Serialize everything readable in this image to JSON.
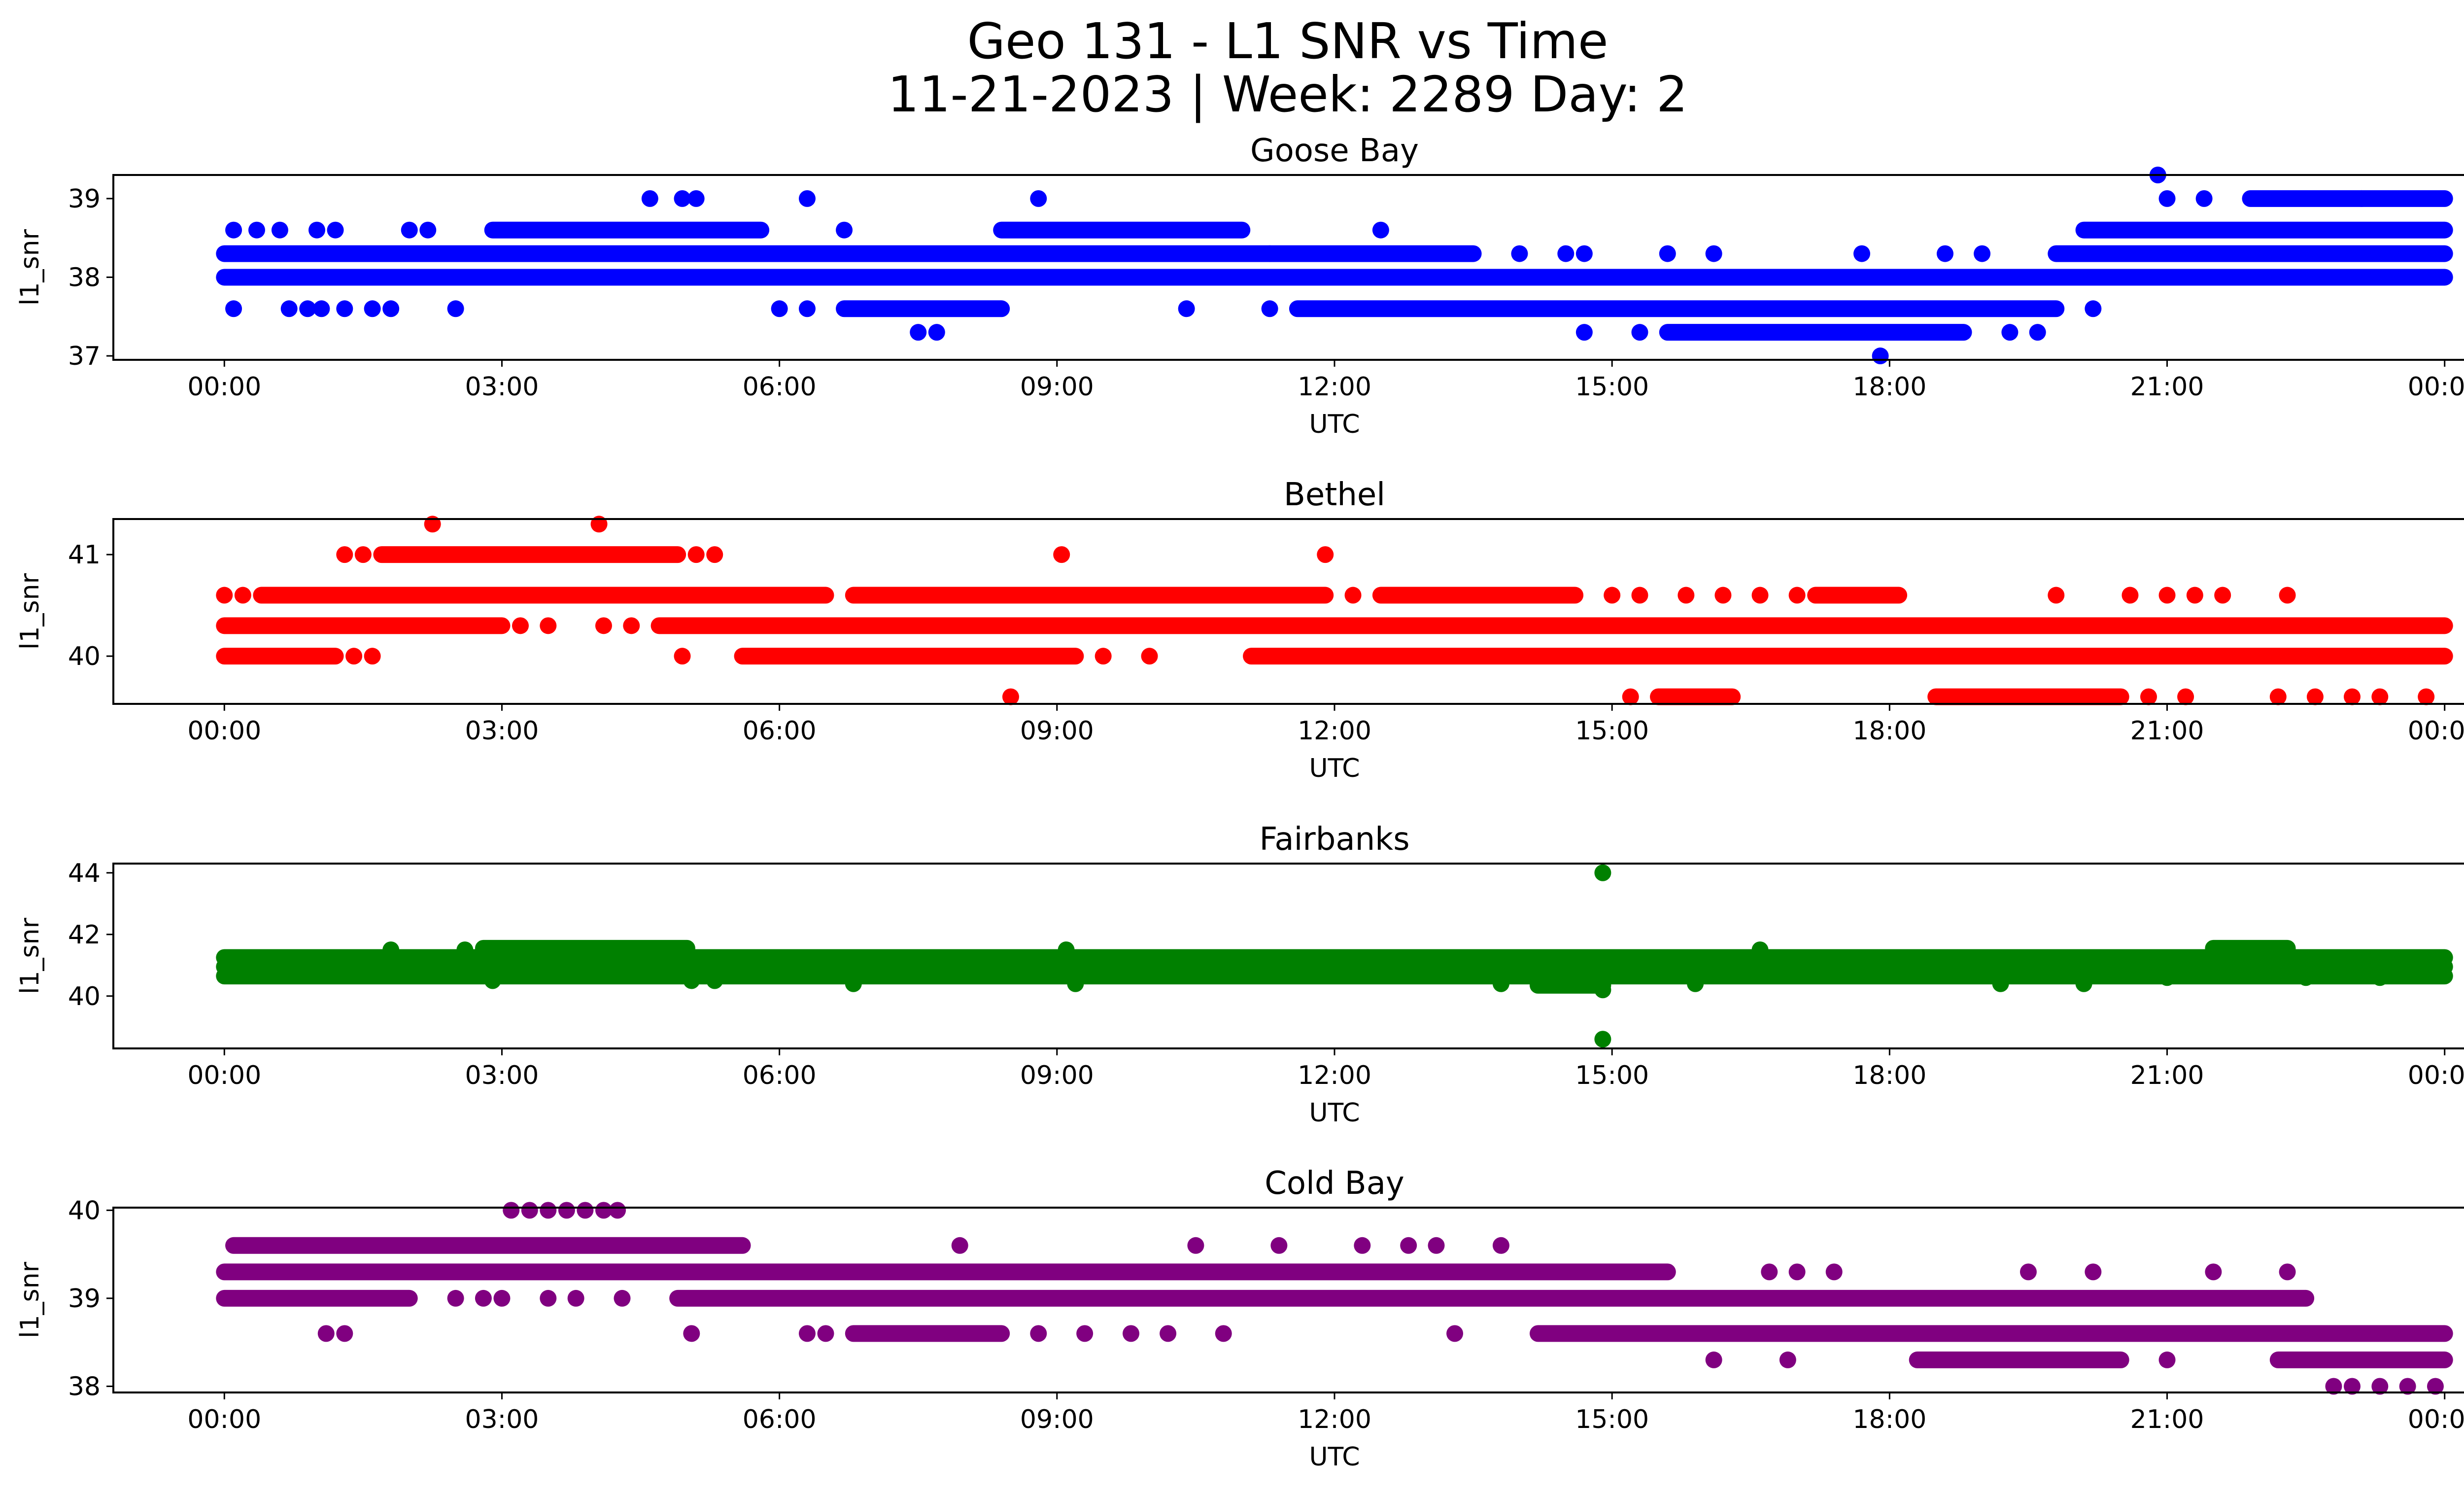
{
  "figure": {
    "title_line1": "Geo 131 - L1 SNR vs Time",
    "title_line2": "11-21-2023 | Week: 2289 Day: 2"
  },
  "chart_data": [
    {
      "type": "scatter",
      "title": "Goose Bay",
      "xlabel": "UTC",
      "ylabel": "l1_snr",
      "color": "#0000ff",
      "x_ticks": [
        "00:00",
        "03:00",
        "06:00",
        "09:00",
        "12:00",
        "15:00",
        "18:00",
        "21:00",
        "00:00"
      ],
      "x_range_hours": [
        -1.2,
        25.2
      ],
      "y_ticks": [
        37,
        38,
        39
      ],
      "ylim": [
        36.95,
        39.3
      ],
      "grid": false,
      "bands": [
        {
          "y": 38.3,
          "segments": [
            [
              0,
              11.3
            ],
            [
              11.3,
              13.5
            ],
            [
              19.8,
              24
            ]
          ]
        },
        {
          "y": 38.0,
          "segments": [
            [
              0,
              24
            ]
          ]
        },
        {
          "y": 38.6,
          "segments": [
            [
              2.9,
              5.8
            ],
            [
              8.4,
              11.0
            ],
            [
              20.1,
              24
            ]
          ]
        },
        {
          "y": 37.6,
          "segments": [
            [
              6.7,
              8.4
            ],
            [
              11.6,
              19.8
            ]
          ]
        },
        {
          "y": 37.3,
          "segments": [
            [
              15.6,
              18.8
            ]
          ]
        },
        {
          "y": 39.0,
          "segments": [
            [
              21.9,
              24
            ]
          ]
        }
      ],
      "points": [
        {
          "x": 0.1,
          "y": 38.6
        },
        {
          "x": 0.35,
          "y": 38.6
        },
        {
          "x": 0.6,
          "y": 38.6
        },
        {
          "x": 1.0,
          "y": 38.6
        },
        {
          "x": 1.2,
          "y": 38.6
        },
        {
          "x": 2.0,
          "y": 38.6
        },
        {
          "x": 2.2,
          "y": 38.6
        },
        {
          "x": 0.1,
          "y": 37.6
        },
        {
          "x": 0.7,
          "y": 37.6
        },
        {
          "x": 0.9,
          "y": 37.6
        },
        {
          "x": 1.05,
          "y": 37.6
        },
        {
          "x": 1.3,
          "y": 37.6
        },
        {
          "x": 1.6,
          "y": 37.6
        },
        {
          "x": 1.8,
          "y": 37.6
        },
        {
          "x": 2.5,
          "y": 37.6
        },
        {
          "x": 4.6,
          "y": 39.0
        },
        {
          "x": 4.95,
          "y": 39.0
        },
        {
          "x": 5.1,
          "y": 39.0
        },
        {
          "x": 6.3,
          "y": 39.0
        },
        {
          "x": 8.8,
          "y": 39.0
        },
        {
          "x": 6.0,
          "y": 37.6
        },
        {
          "x": 6.3,
          "y": 37.6
        },
        {
          "x": 7.5,
          "y": 37.3
        },
        {
          "x": 7.7,
          "y": 37.3
        },
        {
          "x": 6.7,
          "y": 38.6
        },
        {
          "x": 10.4,
          "y": 37.6
        },
        {
          "x": 11.3,
          "y": 37.6
        },
        {
          "x": 12.5,
          "y": 38.6
        },
        {
          "x": 14.0,
          "y": 38.3
        },
        {
          "x": 14.5,
          "y": 38.3
        },
        {
          "x": 14.7,
          "y": 38.3
        },
        {
          "x": 15.6,
          "y": 38.3
        },
        {
          "x": 16.1,
          "y": 38.3
        },
        {
          "x": 17.7,
          "y": 38.3
        },
        {
          "x": 18.6,
          "y": 38.3
        },
        {
          "x": 19.0,
          "y": 38.3
        },
        {
          "x": 14.7,
          "y": 37.3
        },
        {
          "x": 15.3,
          "y": 37.3
        },
        {
          "x": 19.3,
          "y": 37.3
        },
        {
          "x": 19.6,
          "y": 37.3
        },
        {
          "x": 17.9,
          "y": 37.0
        },
        {
          "x": 20.2,
          "y": 37.6
        },
        {
          "x": 21.0,
          "y": 39.0
        },
        {
          "x": 21.4,
          "y": 39.0
        },
        {
          "x": 20.9,
          "y": 39.3
        },
        {
          "x": 21.6,
          "y": 38.0
        },
        {
          "x": 23.1,
          "y": 39.0
        }
      ]
    },
    {
      "type": "scatter",
      "title": "Bethel",
      "xlabel": "UTC",
      "ylabel": "l1_snr",
      "color": "#ff0000",
      "x_ticks": [
        "00:00",
        "03:00",
        "06:00",
        "09:00",
        "12:00",
        "15:00",
        "18:00",
        "21:00",
        "00:00"
      ],
      "x_range_hours": [
        -1.2,
        25.2
      ],
      "y_ticks": [
        40,
        41
      ],
      "ylim": [
        39.53,
        41.35
      ],
      "grid": false,
      "bands": [
        {
          "y": 40.3,
          "segments": [
            [
              0,
              3.0
            ],
            [
              4.7,
              24
            ]
          ]
        },
        {
          "y": 40.6,
          "segments": [
            [
              0.4,
              6.5
            ],
            [
              6.8,
              11.9
            ],
            [
              12.5,
              14.6
            ],
            [
              17.2,
              18.1
            ]
          ]
        },
        {
          "y": 40.0,
          "segments": [
            [
              0,
              1.2
            ],
            [
              5.6,
              9.2
            ],
            [
              11.1,
              24
            ]
          ]
        },
        {
          "y": 41.0,
          "segments": [
            [
              1.7,
              4.9
            ]
          ]
        },
        {
          "y": 39.6,
          "segments": [
            [
              15.5,
              16.3
            ],
            [
              18.5,
              20.5
            ]
          ]
        }
      ],
      "points": [
        {
          "x": 0.0,
          "y": 40.6
        },
        {
          "x": 0.2,
          "y": 40.6
        },
        {
          "x": 1.3,
          "y": 41.0
        },
        {
          "x": 1.5,
          "y": 41.0
        },
        {
          "x": 2.25,
          "y": 41.3
        },
        {
          "x": 4.05,
          "y": 41.3
        },
        {
          "x": 5.1,
          "y": 41.0
        },
        {
          "x": 5.3,
          "y": 41.0
        },
        {
          "x": 1.4,
          "y": 40.0
        },
        {
          "x": 1.6,
          "y": 40.0
        },
        {
          "x": 3.2,
          "y": 40.3
        },
        {
          "x": 3.5,
          "y": 40.3
        },
        {
          "x": 4.1,
          "y": 40.3
        },
        {
          "x": 4.4,
          "y": 40.3
        },
        {
          "x": 4.95,
          "y": 40.0
        },
        {
          "x": 8.5,
          "y": 39.6
        },
        {
          "x": 9.05,
          "y": 41.0
        },
        {
          "x": 11.9,
          "y": 41.0
        },
        {
          "x": 9.5,
          "y": 40.0
        },
        {
          "x": 10.0,
          "y": 40.0
        },
        {
          "x": 12.2,
          "y": 40.6
        },
        {
          "x": 15.0,
          "y": 40.6
        },
        {
          "x": 15.3,
          "y": 40.6
        },
        {
          "x": 15.8,
          "y": 40.6
        },
        {
          "x": 16.2,
          "y": 40.6
        },
        {
          "x": 16.6,
          "y": 40.6
        },
        {
          "x": 17.0,
          "y": 40.6
        },
        {
          "x": 15.2,
          "y": 39.6
        },
        {
          "x": 19.8,
          "y": 40.6
        },
        {
          "x": 20.6,
          "y": 40.6
        },
        {
          "x": 21.0,
          "y": 40.6
        },
        {
          "x": 21.3,
          "y": 40.6
        },
        {
          "x": 21.6,
          "y": 40.6
        },
        {
          "x": 22.3,
          "y": 40.6
        },
        {
          "x": 20.8,
          "y": 39.6
        },
        {
          "x": 21.2,
          "y": 39.6
        },
        {
          "x": 22.2,
          "y": 39.6
        },
        {
          "x": 22.6,
          "y": 39.6
        },
        {
          "x": 23.0,
          "y": 39.6
        },
        {
          "x": 23.3,
          "y": 39.6
        },
        {
          "x": 23.8,
          "y": 39.6
        }
      ]
    },
    {
      "type": "scatter",
      "title": "Fairbanks",
      "xlabel": "UTC",
      "ylabel": "l1_snr",
      "color": "#008000",
      "x_ticks": [
        "00:00",
        "03:00",
        "06:00",
        "09:00",
        "12:00",
        "15:00",
        "18:00",
        "21:00",
        "00:00"
      ],
      "x_range_hours": [
        -1.2,
        25.2
      ],
      "y_ticks": [
        40,
        42,
        44
      ],
      "ylim": [
        38.3,
        44.3
      ],
      "grid": false,
      "bands": [
        {
          "y": 40.65,
          "segments": [
            [
              0,
              24
            ]
          ]
        },
        {
          "y": 40.95,
          "segments": [
            [
              0,
              24
            ]
          ]
        },
        {
          "y": 41.25,
          "segments": [
            [
              0,
              24
            ]
          ]
        },
        {
          "y": 41.55,
          "segments": [
            [
              2.8,
              5.0
            ],
            [
              21.5,
              22.3
            ]
          ]
        },
        {
          "y": 40.35,
          "segments": [
            [
              14.2,
              14.9
            ]
          ]
        }
      ],
      "points": [
        {
          "x": 14.9,
          "y": 44.0
        },
        {
          "x": 14.9,
          "y": 38.6
        },
        {
          "x": 14.9,
          "y": 40.2
        },
        {
          "x": 1.8,
          "y": 41.5
        },
        {
          "x": 2.6,
          "y": 41.5
        },
        {
          "x": 9.1,
          "y": 41.5
        },
        {
          "x": 16.6,
          "y": 41.5
        },
        {
          "x": 2.9,
          "y": 40.5
        },
        {
          "x": 5.05,
          "y": 40.5
        },
        {
          "x": 5.3,
          "y": 40.5
        },
        {
          "x": 6.8,
          "y": 40.4
        },
        {
          "x": 9.2,
          "y": 40.4
        },
        {
          "x": 13.8,
          "y": 40.4
        },
        {
          "x": 15.9,
          "y": 40.4
        },
        {
          "x": 19.2,
          "y": 40.4
        },
        {
          "x": 20.1,
          "y": 40.4
        },
        {
          "x": 21.0,
          "y": 40.6
        },
        {
          "x": 22.5,
          "y": 40.6
        },
        {
          "x": 23.3,
          "y": 40.6
        }
      ]
    },
    {
      "type": "scatter",
      "title": "Cold Bay",
      "xlabel": "UTC",
      "ylabel": "l1_snr",
      "color": "#800080",
      "x_ticks": [
        "00:00",
        "03:00",
        "06:00",
        "09:00",
        "12:00",
        "15:00",
        "18:00",
        "21:00",
        "00:00"
      ],
      "x_range_hours": [
        -1.2,
        25.2
      ],
      "y_ticks": [
        38,
        39,
        40
      ],
      "ylim": [
        37.93,
        40.03
      ],
      "grid": false,
      "bands": [
        {
          "y": 39.3,
          "segments": [
            [
              0,
              15.6
            ]
          ]
        },
        {
          "y": 39.0,
          "segments": [
            [
              0,
              2.0
            ],
            [
              4.9,
              22.5
            ]
          ]
        },
        {
          "y": 39.6,
          "segments": [
            [
              0.1,
              5.6
            ]
          ]
        },
        {
          "y": 38.6,
          "segments": [
            [
              6.8,
              8.4
            ],
            [
              14.2,
              24
            ]
          ]
        },
        {
          "y": 38.3,
          "segments": [
            [
              18.3,
              20.5
            ],
            [
              22.2,
              24
            ]
          ]
        }
      ],
      "points": [
        {
          "x": 1.1,
          "y": 38.6
        },
        {
          "x": 1.3,
          "y": 38.6
        },
        {
          "x": 2.5,
          "y": 39.0
        },
        {
          "x": 2.8,
          "y": 39.0
        },
        {
          "x": 3.0,
          "y": 39.0
        },
        {
          "x": 3.5,
          "y": 39.0
        },
        {
          "x": 3.8,
          "y": 39.0
        },
        {
          "x": 4.3,
          "y": 39.0
        },
        {
          "x": 3.1,
          "y": 40.0
        },
        {
          "x": 3.3,
          "y": 40.0
        },
        {
          "x": 3.5,
          "y": 40.0
        },
        {
          "x": 3.7,
          "y": 40.0
        },
        {
          "x": 3.9,
          "y": 40.0
        },
        {
          "x": 4.1,
          "y": 40.0
        },
        {
          "x": 4.25,
          "y": 40.0
        },
        {
          "x": 5.05,
          "y": 38.6
        },
        {
          "x": 6.3,
          "y": 38.6
        },
        {
          "x": 6.5,
          "y": 38.6
        },
        {
          "x": 8.8,
          "y": 38.6
        },
        {
          "x": 9.3,
          "y": 38.6
        },
        {
          "x": 9.8,
          "y": 38.6
        },
        {
          "x": 10.2,
          "y": 38.6
        },
        {
          "x": 10.8,
          "y": 38.6
        },
        {
          "x": 7.95,
          "y": 39.6
        },
        {
          "x": 10.5,
          "y": 39.6
        },
        {
          "x": 11.4,
          "y": 39.6
        },
        {
          "x": 12.3,
          "y": 39.6
        },
        {
          "x": 12.8,
          "y": 39.6
        },
        {
          "x": 13.1,
          "y": 39.6
        },
        {
          "x": 13.8,
          "y": 39.6
        },
        {
          "x": 13.3,
          "y": 38.6
        },
        {
          "x": 16.1,
          "y": 38.3
        },
        {
          "x": 16.9,
          "y": 38.3
        },
        {
          "x": 16.7,
          "y": 39.3
        },
        {
          "x": 17.0,
          "y": 39.3
        },
        {
          "x": 17.4,
          "y": 39.3
        },
        {
          "x": 19.5,
          "y": 39.3
        },
        {
          "x": 20.2,
          "y": 39.3
        },
        {
          "x": 21.5,
          "y": 39.3
        },
        {
          "x": 22.3,
          "y": 39.3
        },
        {
          "x": 21.0,
          "y": 38.3
        },
        {
          "x": 22.8,
          "y": 38.0
        },
        {
          "x": 23.0,
          "y": 38.0
        },
        {
          "x": 23.3,
          "y": 38.0
        },
        {
          "x": 23.6,
          "y": 38.0
        },
        {
          "x": 23.9,
          "y": 38.0
        }
      ]
    }
  ]
}
